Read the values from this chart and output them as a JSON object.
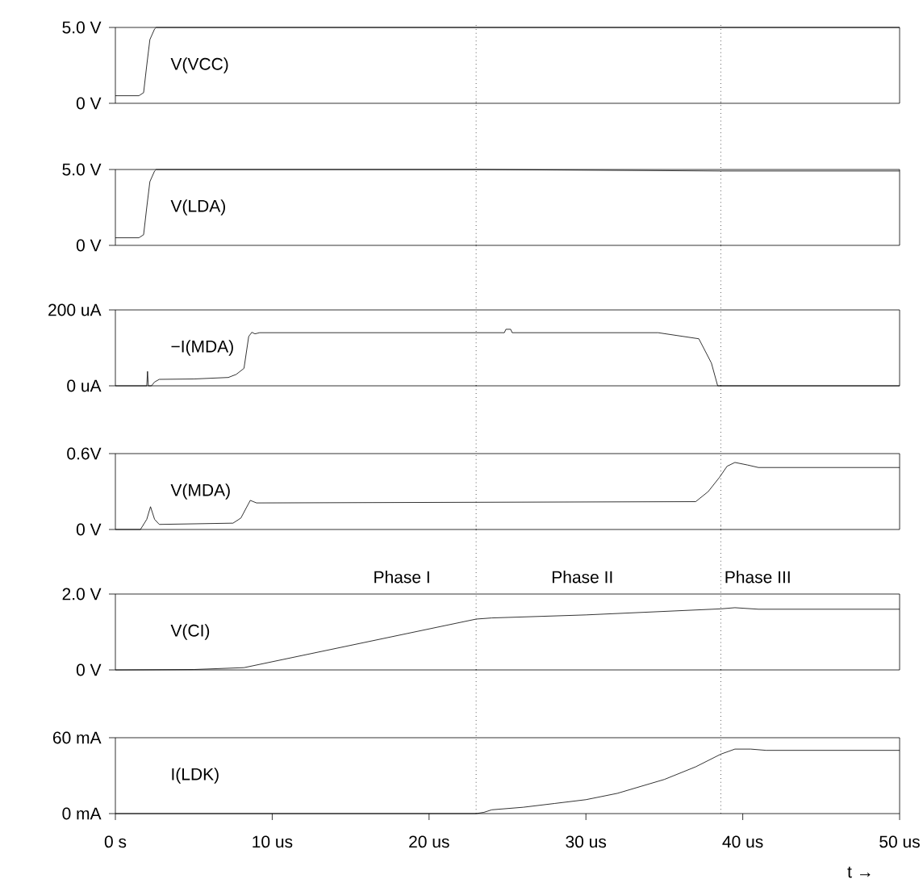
{
  "chart_data": [
    {
      "type": "line",
      "xlim": [
        0,
        50
      ],
      "ylim": [
        0,
        5
      ],
      "yticks": [
        {
          "value": 0,
          "label": "0 V"
        },
        {
          "value": 5,
          "label": "5.0 V"
        }
      ],
      "tick_labels": "y",
      "marker": "none",
      "series": [
        {
          "name": "V(VCC)",
          "color": "#000000",
          "x": [
            0,
            1.5,
            1.8,
            2.0,
            2.2,
            2.5,
            2.6,
            23,
            38.6,
            50
          ],
          "values": [
            0.5,
            0.5,
            0.7,
            2.5,
            4.2,
            4.9,
            5.0,
            5.0,
            5.0,
            5.0
          ]
        }
      ],
      "ref_lines": [
        {
          "axis": "x",
          "value": 23.0,
          "line_style": "dotted"
        },
        {
          "axis": "x",
          "value": 38.6,
          "line_style": "dotted"
        }
      ]
    },
    {
      "type": "line",
      "xlim": [
        0,
        50
      ],
      "ylim": [
        0,
        5
      ],
      "yticks": [
        {
          "value": 0,
          "label": "0 V"
        },
        {
          "value": 5,
          "label": "5.0 V"
        }
      ],
      "tick_labels": "y",
      "marker": "none",
      "series": [
        {
          "name": "V(LDA)",
          "color": "#000000",
          "x": [
            0,
            1.5,
            1.8,
            2.0,
            2.2,
            2.5,
            2.6,
            23,
            38.6,
            50
          ],
          "values": [
            0.5,
            0.5,
            0.7,
            2.5,
            4.2,
            4.9,
            5.0,
            5.0,
            4.9,
            4.9
          ]
        }
      ],
      "ref_lines": [
        {
          "axis": "x",
          "value": 23.0,
          "line_style": "dotted"
        },
        {
          "axis": "x",
          "value": 38.6,
          "line_style": "dotted"
        }
      ]
    },
    {
      "type": "line",
      "xlim": [
        0,
        50
      ],
      "ylim": [
        0,
        200
      ],
      "yticks": [
        {
          "value": 0,
          "label": "0 uA"
        },
        {
          "value": 200,
          "label": "200 uA"
        }
      ],
      "tick_labels": "y",
      "marker": "none",
      "series": [
        {
          "name": "−I(MDA)",
          "color": "#000000",
          "x": [
            0,
            2.0,
            2.05,
            2.1,
            2.3,
            2.5,
            2.8,
            5,
            7.2,
            7.7,
            8.2,
            8.5,
            8.7,
            8.9,
            9.2,
            24.8,
            24.9,
            25.2,
            25.3,
            34.6,
            37.2,
            38.0,
            38.4,
            50
          ],
          "values": [
            0,
            0,
            38,
            0,
            0,
            10,
            17,
            18,
            22,
            30,
            46,
            130,
            141,
            137,
            140,
            140,
            149,
            149,
            140,
            140,
            124,
            60,
            0,
            0
          ]
        }
      ],
      "ref_lines": [
        {
          "axis": "x",
          "value": 23.0,
          "line_style": "dotted"
        },
        {
          "axis": "x",
          "value": 38.6,
          "line_style": "dotted"
        }
      ]
    },
    {
      "type": "line",
      "xlim": [
        0,
        50
      ],
      "ylim": [
        0,
        0.6
      ],
      "yticks": [
        {
          "value": 0,
          "label": "0 V"
        },
        {
          "value": 0.6,
          "label": "0.6V"
        }
      ],
      "tick_labels": "y",
      "marker": "none",
      "series": [
        {
          "name": "V(MDA)",
          "color": "#000000",
          "x": [
            0,
            1.6,
            2.0,
            2.24,
            2.5,
            2.8,
            7.5,
            8.0,
            8.6,
            9.0,
            37.0,
            37.8,
            38.5,
            39.0,
            39.5,
            40.3,
            41.0,
            50
          ],
          "values": [
            0,
            0,
            0.08,
            0.18,
            0.08,
            0.04,
            0.05,
            0.09,
            0.23,
            0.21,
            0.22,
            0.3,
            0.41,
            0.5,
            0.53,
            0.51,
            0.49,
            0.49
          ]
        }
      ],
      "ref_lines": [
        {
          "axis": "x",
          "value": 23.0,
          "line_style": "dotted"
        },
        {
          "axis": "x",
          "value": 38.6,
          "line_style": "dotted"
        }
      ]
    },
    {
      "type": "line",
      "xlim": [
        0,
        50
      ],
      "ylim": [
        0,
        2
      ],
      "yticks": [
        {
          "value": 0,
          "label": "0 V"
        },
        {
          "value": 2,
          "label": "2.0 V"
        }
      ],
      "tick_labels": "y",
      "marker": "none",
      "series": [
        {
          "name": "V(CI)",
          "color": "#000000",
          "x": [
            0,
            5,
            8.2,
            23.0,
            24,
            30,
            38.6,
            39.5,
            41,
            50
          ],
          "values": [
            0,
            0.01,
            0.06,
            1.34,
            1.37,
            1.45,
            1.61,
            1.64,
            1.6,
            1.6
          ]
        }
      ],
      "ref_lines": [
        {
          "axis": "x",
          "value": 23.0,
          "line_style": "dotted"
        },
        {
          "axis": "x",
          "value": 38.6,
          "line_style": "dotted"
        }
      ],
      "annotations": [
        "Phase I",
        "Phase II",
        "Phase III"
      ]
    },
    {
      "type": "line",
      "xlim": [
        0,
        50
      ],
      "ylim": [
        0,
        60
      ],
      "xticks": [
        {
          "value": 0,
          "label": "0 s"
        },
        {
          "value": 10,
          "label": "10 us"
        },
        {
          "value": 20,
          "label": "20 us"
        },
        {
          "value": 30,
          "label": "30 us"
        },
        {
          "value": 40,
          "label": "40 us"
        },
        {
          "value": 50,
          "label": "50 us"
        }
      ],
      "yticks": [
        {
          "value": 0,
          "label": "0 mA"
        },
        {
          "value": 60,
          "label": "60 mA"
        }
      ],
      "marker": "none",
      "xlabel": "t →",
      "series": [
        {
          "name": "I(LDK)",
          "color": "#000000",
          "x": [
            0,
            23.0,
            23.5,
            24,
            26,
            28,
            30,
            32,
            35,
            37,
            38.6,
            39.5,
            40.5,
            41.5,
            50
          ],
          "values": [
            0,
            0,
            1,
            3,
            5,
            8,
            11,
            16,
            27,
            37,
            47,
            51,
            51,
            50,
            50
          ]
        }
      ],
      "ref_lines": [
        {
          "axis": "x",
          "value": 23.0,
          "line_style": "dotted"
        },
        {
          "axis": "x",
          "value": 38.6,
          "line_style": "dotted"
        }
      ]
    }
  ]
}
